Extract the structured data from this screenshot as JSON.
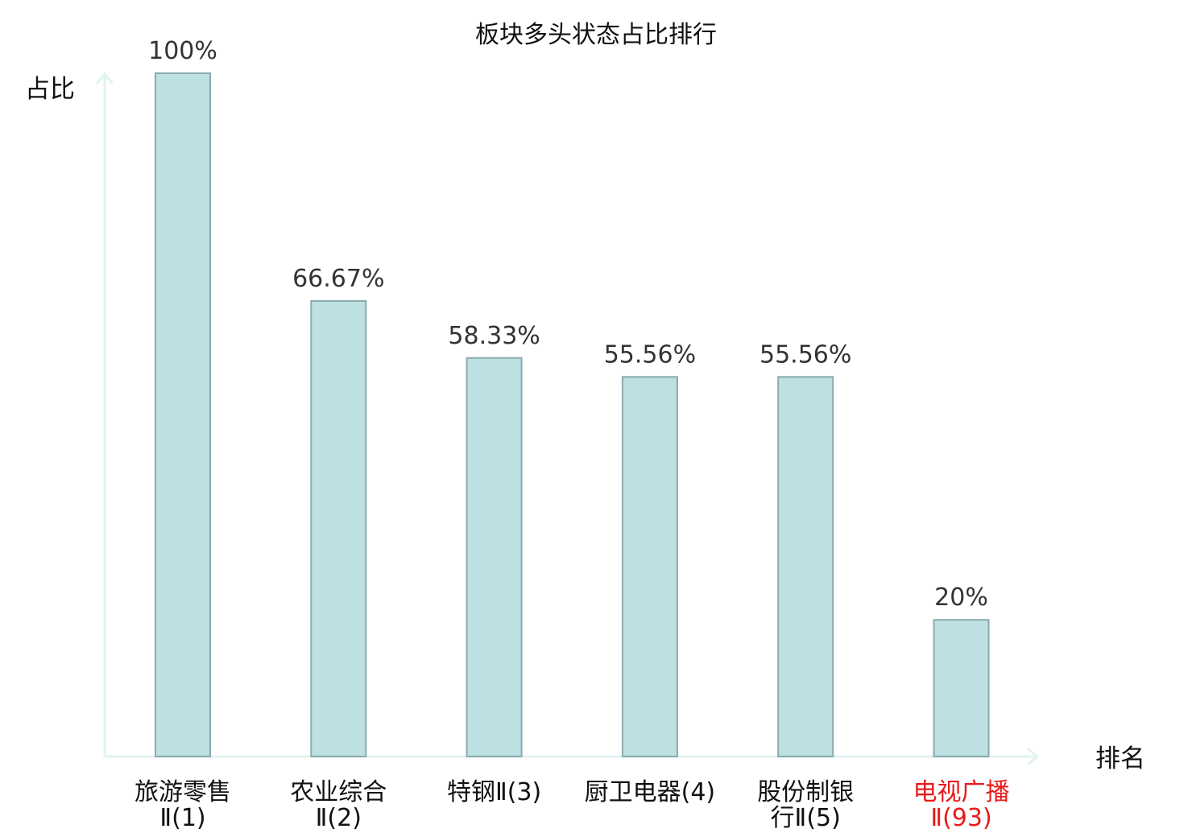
{
  "chart_data": {
    "type": "bar",
    "title": "板块多头状态占比排行",
    "xlabel": "排名",
    "ylabel": "占比",
    "ylim": [
      0,
      100
    ],
    "grid": false,
    "legend": "none",
    "categories": [
      [
        "旅游零售",
        "Ⅱ(1)"
      ],
      [
        "农业综合",
        "Ⅱ(2)"
      ],
      [
        "特钢Ⅱ(3)"
      ],
      [
        "厨卫电器(4)"
      ],
      [
        "股份制银",
        "行Ⅱ(5)"
      ],
      [
        "电视广播",
        "Ⅱ(93)"
      ]
    ],
    "values": [
      100,
      66.67,
      58.33,
      55.56,
      55.56,
      20
    ],
    "value_labels": [
      "100%",
      "66.67%",
      "58.33%",
      "55.56%",
      "55.56%",
      "20%"
    ],
    "highlight_index": 5,
    "colors": {
      "bar_fill": "#bde0e3",
      "bar_stroke": "#8aabad",
      "axis": "#e0f3f1",
      "label_default": "#111111",
      "label_secondary": "#333333",
      "label_highlight": "#e8191a"
    }
  }
}
